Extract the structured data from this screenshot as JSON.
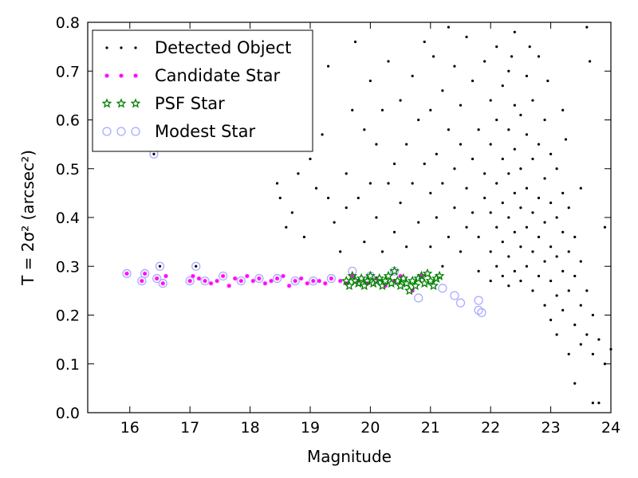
{
  "chart_data": {
    "type": "scatter",
    "xlabel": "Magnitude",
    "ylabel": "T = 2σ² (arcsec²)",
    "xlim": [
      15.3,
      24.0
    ],
    "ylim": [
      0.0,
      0.8
    ],
    "x_ticks": [
      16,
      17,
      18,
      19,
      20,
      21,
      22,
      23,
      24
    ],
    "y_ticks": [
      0.0,
      0.1,
      0.2,
      0.3,
      0.4,
      0.5,
      0.6,
      0.7,
      0.8
    ],
    "legend_position": "top-left",
    "grid": false,
    "series": [
      {
        "name": "Detected Object",
        "marker": "dot",
        "color": "#000000",
        "points": [
          [
            16.4,
            0.53
          ],
          [
            16.5,
            0.3
          ],
          [
            17.1,
            0.3
          ],
          [
            18.45,
            0.47
          ],
          [
            18.5,
            0.44
          ],
          [
            18.6,
            0.38
          ],
          [
            18.7,
            0.41
          ],
          [
            18.8,
            0.49
          ],
          [
            18.9,
            0.36
          ],
          [
            19.0,
            0.52
          ],
          [
            19.1,
            0.46
          ],
          [
            19.2,
            0.57
          ],
          [
            19.3,
            0.44
          ],
          [
            19.3,
            0.71
          ],
          [
            19.4,
            0.39
          ],
          [
            19.5,
            0.33
          ],
          [
            19.6,
            0.42
          ],
          [
            19.6,
            0.49
          ],
          [
            19.7,
            0.62
          ],
          [
            19.75,
            0.76
          ],
          [
            19.8,
            0.44
          ],
          [
            19.9,
            0.35
          ],
          [
            19.9,
            0.58
          ],
          [
            20.0,
            0.47
          ],
          [
            20.0,
            0.68
          ],
          [
            20.1,
            0.4
          ],
          [
            20.1,
            0.55
          ],
          [
            20.2,
            0.33
          ],
          [
            20.2,
            0.62
          ],
          [
            20.3,
            0.47
          ],
          [
            20.3,
            0.72
          ],
          [
            20.4,
            0.37
          ],
          [
            20.4,
            0.51
          ],
          [
            20.5,
            0.64
          ],
          [
            20.5,
            0.43
          ],
          [
            20.6,
            0.34
          ],
          [
            20.6,
            0.55
          ],
          [
            20.7,
            0.47
          ],
          [
            20.7,
            0.69
          ],
          [
            20.8,
            0.39
          ],
          [
            20.8,
            0.6
          ],
          [
            20.9,
            0.51
          ],
          [
            20.9,
            0.76
          ],
          [
            21.0,
            0.34
          ],
          [
            21.0,
            0.45
          ],
          [
            21.0,
            0.62
          ],
          [
            21.05,
            0.73
          ],
          [
            21.1,
            0.4
          ],
          [
            21.1,
            0.53
          ],
          [
            21.2,
            0.3
          ],
          [
            21.2,
            0.47
          ],
          [
            21.2,
            0.66
          ],
          [
            21.3,
            0.36
          ],
          [
            21.3,
            0.58
          ],
          [
            21.3,
            0.79
          ],
          [
            21.4,
            0.42
          ],
          [
            21.4,
            0.5
          ],
          [
            21.4,
            0.71
          ],
          [
            21.5,
            0.33
          ],
          [
            21.5,
            0.55
          ],
          [
            21.5,
            0.63
          ],
          [
            21.6,
            0.38
          ],
          [
            21.6,
            0.46
          ],
          [
            21.6,
            0.77
          ],
          [
            21.7,
            0.41
          ],
          [
            21.7,
            0.52
          ],
          [
            21.7,
            0.68
          ],
          [
            21.8,
            0.29
          ],
          [
            21.8,
            0.36
          ],
          [
            21.8,
            0.58
          ],
          [
            21.9,
            0.44
          ],
          [
            21.9,
            0.49
          ],
          [
            21.9,
            0.72
          ],
          [
            22.0,
            0.27
          ],
          [
            22.0,
            0.33
          ],
          [
            22.0,
            0.41
          ],
          [
            22.0,
            0.55
          ],
          [
            22.0,
            0.64
          ],
          [
            22.1,
            0.3
          ],
          [
            22.1,
            0.38
          ],
          [
            22.1,
            0.47
          ],
          [
            22.1,
            0.6
          ],
          [
            22.1,
            0.75
          ],
          [
            22.2,
            0.28
          ],
          [
            22.2,
            0.35
          ],
          [
            22.2,
            0.43
          ],
          [
            22.2,
            0.52
          ],
          [
            22.2,
            0.67
          ],
          [
            22.3,
            0.26
          ],
          [
            22.3,
            0.32
          ],
          [
            22.3,
            0.4
          ],
          [
            22.3,
            0.49
          ],
          [
            22.3,
            0.58
          ],
          [
            22.3,
            0.7
          ],
          [
            22.4,
            0.29
          ],
          [
            22.4,
            0.37
          ],
          [
            22.4,
            0.45
          ],
          [
            22.4,
            0.54
          ],
          [
            22.4,
            0.63
          ],
          [
            22.4,
            0.78
          ],
          [
            22.5,
            0.27
          ],
          [
            22.5,
            0.34
          ],
          [
            22.5,
            0.42
          ],
          [
            22.5,
            0.5
          ],
          [
            22.5,
            0.61
          ],
          [
            22.6,
            0.3
          ],
          [
            22.6,
            0.38
          ],
          [
            22.6,
            0.46
          ],
          [
            22.6,
            0.57
          ],
          [
            22.6,
            0.69
          ],
          [
            22.7,
            0.25
          ],
          [
            22.7,
            0.33
          ],
          [
            22.7,
            0.41
          ],
          [
            22.7,
            0.52
          ],
          [
            22.7,
            0.64
          ],
          [
            22.8,
            0.28
          ],
          [
            22.8,
            0.36
          ],
          [
            22.8,
            0.44
          ],
          [
            22.8,
            0.55
          ],
          [
            22.8,
            0.73
          ],
          [
            22.9,
            0.22
          ],
          [
            22.9,
            0.31
          ],
          [
            22.9,
            0.39
          ],
          [
            22.9,
            0.48
          ],
          [
            22.9,
            0.6
          ],
          [
            23.0,
            0.19
          ],
          [
            23.0,
            0.27
          ],
          [
            23.0,
            0.34
          ],
          [
            23.0,
            0.43
          ],
          [
            23.0,
            0.53
          ],
          [
            23.1,
            0.16
          ],
          [
            23.1,
            0.24
          ],
          [
            23.1,
            0.32
          ],
          [
            23.1,
            0.4
          ],
          [
            23.1,
            0.5
          ],
          [
            23.2,
            0.21
          ],
          [
            23.2,
            0.29
          ],
          [
            23.2,
            0.37
          ],
          [
            23.2,
            0.45
          ],
          [
            23.2,
            0.62
          ],
          [
            23.3,
            0.12
          ],
          [
            23.3,
            0.25
          ],
          [
            23.3,
            0.33
          ],
          [
            23.3,
            0.42
          ],
          [
            23.4,
            0.06
          ],
          [
            23.4,
            0.18
          ],
          [
            23.4,
            0.28
          ],
          [
            23.4,
            0.36
          ],
          [
            23.5,
            0.14
          ],
          [
            23.5,
            0.22
          ],
          [
            23.5,
            0.31
          ],
          [
            23.5,
            0.46
          ],
          [
            23.6,
            0.16
          ],
          [
            23.6,
            0.25
          ],
          [
            23.6,
            0.79
          ],
          [
            23.7,
            0.02
          ],
          [
            23.7,
            0.12
          ],
          [
            23.7,
            0.2
          ],
          [
            23.8,
            0.02
          ],
          [
            23.8,
            0.15
          ],
          [
            23.9,
            0.1
          ],
          [
            23.9,
            0.38
          ],
          [
            24.0,
            0.13
          ],
          [
            23.65,
            0.72
          ],
          [
            23.25,
            0.56
          ],
          [
            22.95,
            0.68
          ],
          [
            22.65,
            0.75
          ],
          [
            22.35,
            0.73
          ]
        ]
      },
      {
        "name": "Candidate Star",
        "marker": "dot",
        "color": "#ff00ff",
        "points": [
          [
            15.95,
            0.285
          ],
          [
            16.2,
            0.27
          ],
          [
            16.25,
            0.285
          ],
          [
            16.45,
            0.275
          ],
          [
            16.55,
            0.265
          ],
          [
            16.6,
            0.28
          ],
          [
            17.0,
            0.27
          ],
          [
            17.05,
            0.28
          ],
          [
            17.15,
            0.275
          ],
          [
            17.25,
            0.27
          ],
          [
            17.35,
            0.265
          ],
          [
            17.45,
            0.27
          ],
          [
            17.55,
            0.28
          ],
          [
            17.65,
            0.26
          ],
          [
            17.75,
            0.275
          ],
          [
            17.85,
            0.27
          ],
          [
            17.95,
            0.28
          ],
          [
            18.05,
            0.27
          ],
          [
            18.15,
            0.275
          ],
          [
            18.25,
            0.265
          ],
          [
            18.35,
            0.27
          ],
          [
            18.45,
            0.275
          ],
          [
            18.55,
            0.28
          ],
          [
            18.65,
            0.26
          ],
          [
            18.75,
            0.27
          ],
          [
            18.85,
            0.275
          ],
          [
            18.95,
            0.265
          ],
          [
            19.05,
            0.27
          ],
          [
            19.15,
            0.27
          ],
          [
            19.25,
            0.265
          ],
          [
            19.35,
            0.275
          ],
          [
            19.5,
            0.27
          ],
          [
            19.6,
            0.265
          ],
          [
            19.7,
            0.28
          ],
          [
            19.8,
            0.27
          ],
          [
            19.95,
            0.265
          ],
          [
            20.1,
            0.275
          ],
          [
            20.25,
            0.26
          ],
          [
            20.4,
            0.27
          ],
          [
            20.5,
            0.28
          ],
          [
            20.7,
            0.25
          ],
          [
            20.85,
            0.28
          ]
        ]
      },
      {
        "name": "PSF Star",
        "marker": "star",
        "color": "#008000",
        "points": [
          [
            19.6,
            0.27
          ],
          [
            19.65,
            0.26
          ],
          [
            19.7,
            0.28
          ],
          [
            19.75,
            0.27
          ],
          [
            19.8,
            0.265
          ],
          [
            19.85,
            0.275
          ],
          [
            19.9,
            0.26
          ],
          [
            19.95,
            0.27
          ],
          [
            20.0,
            0.28
          ],
          [
            20.05,
            0.265
          ],
          [
            20.1,
            0.27
          ],
          [
            20.15,
            0.275
          ],
          [
            20.2,
            0.26
          ],
          [
            20.25,
            0.27
          ],
          [
            20.3,
            0.28
          ],
          [
            20.35,
            0.265
          ],
          [
            20.4,
            0.29
          ],
          [
            20.45,
            0.27
          ],
          [
            20.5,
            0.26
          ],
          [
            20.55,
            0.275
          ],
          [
            20.6,
            0.265
          ],
          [
            20.65,
            0.25
          ],
          [
            20.7,
            0.27
          ],
          [
            20.75,
            0.26
          ],
          [
            20.8,
            0.275
          ],
          [
            20.85,
            0.28
          ],
          [
            20.9,
            0.265
          ],
          [
            20.95,
            0.285
          ],
          [
            21.0,
            0.27
          ],
          [
            21.05,
            0.26
          ],
          [
            21.1,
            0.275
          ],
          [
            21.15,
            0.28
          ]
        ]
      },
      {
        "name": "Modest Star",
        "marker": "ring",
        "color": "#aaaaff",
        "points": [
          [
            15.95,
            0.285
          ],
          [
            16.2,
            0.27
          ],
          [
            16.25,
            0.285
          ],
          [
            16.4,
            0.53
          ],
          [
            16.45,
            0.275
          ],
          [
            16.5,
            0.3
          ],
          [
            16.55,
            0.265
          ],
          [
            17.0,
            0.27
          ],
          [
            17.1,
            0.3
          ],
          [
            17.25,
            0.27
          ],
          [
            17.55,
            0.28
          ],
          [
            17.85,
            0.27
          ],
          [
            18.15,
            0.275
          ],
          [
            18.45,
            0.275
          ],
          [
            18.75,
            0.27
          ],
          [
            19.05,
            0.27
          ],
          [
            19.35,
            0.275
          ],
          [
            19.7,
            0.29
          ],
          [
            20.0,
            0.28
          ],
          [
            20.4,
            0.29
          ],
          [
            20.8,
            0.235
          ],
          [
            21.2,
            0.255
          ],
          [
            21.4,
            0.24
          ],
          [
            21.5,
            0.225
          ],
          [
            21.8,
            0.23
          ],
          [
            21.8,
            0.21
          ],
          [
            21.85,
            0.205
          ]
        ]
      }
    ]
  }
}
